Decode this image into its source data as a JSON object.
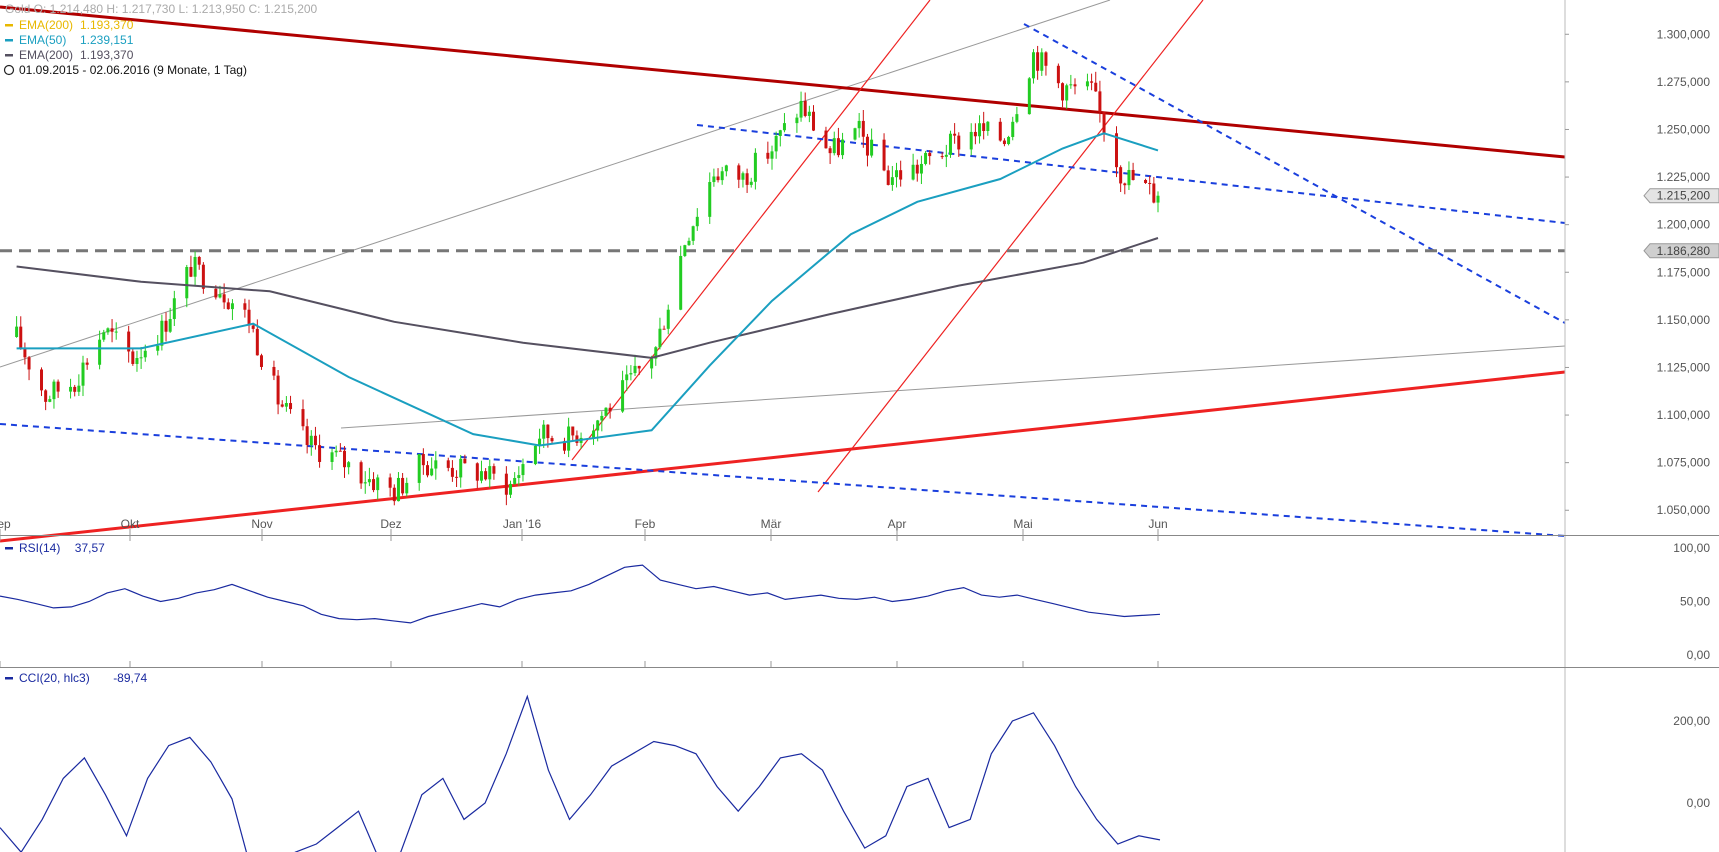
{
  "header": {
    "instrument": "Gold",
    "ohlc": "O: 1.214,480  H: 1.217,730  L: 1.213,950  C: 1.215,200",
    "date_range": "01.09.2015 - 02.06.2016 (9 Monate, 1 Tag)"
  },
  "legend": [
    {
      "label": "EMA(200)",
      "value": "1.193,370",
      "color": "#e8b800"
    },
    {
      "label": "EMA(50)",
      "value": "1.239,151",
      "color": "#1a9fc0"
    },
    {
      "label": "EMA(200)",
      "value": "1.193,370",
      "color": "#555060"
    }
  ],
  "price_tags": {
    "last": "1.215,200",
    "support": "1.186,280"
  },
  "panels": {
    "rsi": {
      "label": "RSI(14)",
      "value": "37,57",
      "ticks": [
        "100,00",
        "50,00",
        "0,00"
      ]
    },
    "cci": {
      "label": "CCI(20, hlc3)",
      "value": "-89,74",
      "ticks": [
        "200,00",
        "0,00"
      ]
    }
  },
  "colors": {
    "up": "#22cc22",
    "down": "#cc1111",
    "ema50": "#1a9fc0",
    "ema200": "#555060",
    "trend_dark": "#b00000",
    "trend_red": "#ee2222",
    "dash_blue": "#1a3fdd",
    "dash_gray": "#777777",
    "indicator": "#1a2aa0"
  },
  "chart_data": {
    "type": "candlestick",
    "x_ticks": [
      "Sep",
      "Okt",
      "Nov",
      "Dez",
      "Jan '16",
      "Feb",
      "Mär",
      "Apr",
      "Mai",
      "Jun"
    ],
    "y_ticks": [
      "1.300,000",
      "1.275,000",
      "1.250,000",
      "1.225,000",
      "1.200,000",
      "1.175,000",
      "1.150,000",
      "1.125,000",
      "1.100,000",
      "1.075,000",
      "1.050,000"
    ],
    "ylim": [
      1037,
      1318
    ],
    "date_range": [
      "2015-09-01",
      "2016-06-02"
    ],
    "weekly_closes": [
      [
        "2015-09-01",
        1141
      ],
      [
        "2015-09-08",
        1110
      ],
      [
        "2015-09-15",
        1118
      ],
      [
        "2015-09-22",
        1145
      ],
      [
        "2015-09-29",
        1130
      ],
      [
        "2015-10-06",
        1145
      ],
      [
        "2015-10-13",
        1178
      ],
      [
        "2015-10-20",
        1167
      ],
      [
        "2015-10-27",
        1150
      ],
      [
        "2015-11-03",
        1108
      ],
      [
        "2015-11-10",
        1085
      ],
      [
        "2015-11-17",
        1078
      ],
      [
        "2015-11-24",
        1068
      ],
      [
        "2015-12-01",
        1060
      ],
      [
        "2015-12-08",
        1075
      ],
      [
        "2015-12-15",
        1072
      ],
      [
        "2015-12-22",
        1070
      ],
      [
        "2015-12-29",
        1063
      ],
      [
        "2016-01-05",
        1090
      ],
      [
        "2016-01-12",
        1088
      ],
      [
        "2016-01-19",
        1098
      ],
      [
        "2016-01-26",
        1115
      ],
      [
        "2016-02-02",
        1135
      ],
      [
        "2016-02-09",
        1192
      ],
      [
        "2016-02-16",
        1228
      ],
      [
        "2016-02-23",
        1225
      ],
      [
        "2016-03-01",
        1240
      ],
      [
        "2016-03-08",
        1263
      ],
      [
        "2016-03-15",
        1238
      ],
      [
        "2016-03-22",
        1248
      ],
      [
        "2016-03-29",
        1225
      ],
      [
        "2016-04-05",
        1230
      ],
      [
        "2016-04-12",
        1240
      ],
      [
        "2016-04-19",
        1250
      ],
      [
        "2016-04-26",
        1245
      ],
      [
        "2016-05-03",
        1290
      ],
      [
        "2016-05-10",
        1272
      ],
      [
        "2016-05-17",
        1270
      ],
      [
        "2016-05-24",
        1228
      ],
      [
        "2016-06-02",
        1215
      ]
    ],
    "ema50": [
      [
        "2015-09-01",
        1135
      ],
      [
        "2015-10-01",
        1135
      ],
      [
        "2015-10-28",
        1148
      ],
      [
        "2015-11-20",
        1120
      ],
      [
        "2015-12-20",
        1090
      ],
      [
        "2016-01-05",
        1084
      ],
      [
        "2016-02-01",
        1092
      ],
      [
        "2016-02-15",
        1126
      ],
      [
        "2016-03-01",
        1160
      ],
      [
        "2016-03-20",
        1195
      ],
      [
        "2016-04-05",
        1212
      ],
      [
        "2016-04-25",
        1224
      ],
      [
        "2016-05-10",
        1240
      ],
      [
        "2016-05-20",
        1248
      ],
      [
        "2016-06-02",
        1239
      ]
    ],
    "ema200": [
      [
        "2015-09-01",
        1178
      ],
      [
        "2015-10-01",
        1170
      ],
      [
        "2015-11-01",
        1165
      ],
      [
        "2015-12-01",
        1149
      ],
      [
        "2016-01-01",
        1138
      ],
      [
        "2016-02-01",
        1130
      ],
      [
        "2016-02-15",
        1138
      ],
      [
        "2016-03-15",
        1153
      ],
      [
        "2016-04-15",
        1168
      ],
      [
        "2016-05-15",
        1180
      ],
      [
        "2016-06-02",
        1193
      ]
    ],
    "support_level": 1186.28,
    "last_price": 1215.2
  }
}
